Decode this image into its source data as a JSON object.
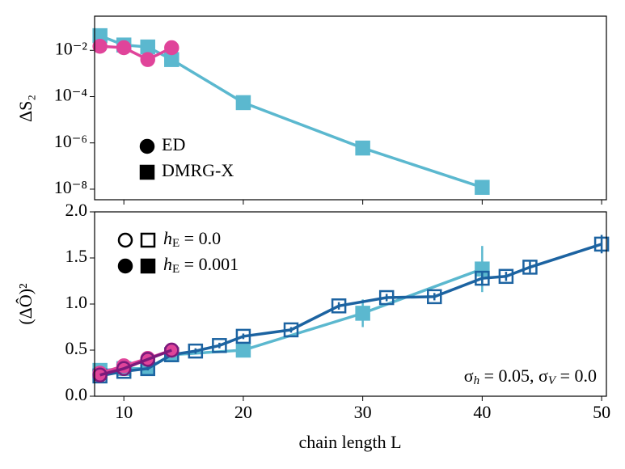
{
  "chart_data": [
    {
      "type": "line",
      "log_y": true,
      "ylabel": "ΔS₂",
      "xlim": [
        7.55,
        50.4
      ],
      "xticks": [
        10,
        20,
        30,
        40,
        50
      ],
      "ylim": [
        3.5e-09,
        0.3
      ],
      "yticks": [
        {
          "value": 0.01,
          "label": "10⁻²"
        },
        {
          "value": 0.0001,
          "label": "10⁻⁴"
        },
        {
          "value": 1e-06,
          "label": "10⁻⁶"
        },
        {
          "value": 1e-08,
          "label": "10⁻⁸"
        }
      ],
      "series": [
        {
          "name": "DMRG-X",
          "color": "#5bb8cf",
          "marker": "s",
          "filled": true,
          "x": [
            8,
            10,
            12,
            14,
            20,
            30,
            40
          ],
          "values": [
            0.043,
            0.017,
            0.014,
            0.004,
            5.5e-05,
            6e-07,
            1.2e-08
          ]
        },
        {
          "name": "ED",
          "color": "#e0449a",
          "marker": "o",
          "filled": true,
          "x": [
            8,
            10,
            12,
            14
          ],
          "values": [
            0.015,
            0.013,
            0.004,
            0.013
          ]
        }
      ]
    },
    {
      "type": "line",
      "xlabel": "chain length L",
      "xlim": [
        7.55,
        50.4
      ],
      "xticks": [
        10,
        20,
        30,
        40,
        50
      ],
      "ylim": [
        0,
        2
      ],
      "yticks": [
        {
          "value": 0,
          "label": "0.0"
        },
        {
          "value": 0.5,
          "label": "0.5"
        },
        {
          "value": 1,
          "label": "1.0"
        },
        {
          "value": 1.5,
          "label": "1.5"
        },
        {
          "value": 2,
          "label": "2.0"
        }
      ],
      "ylabel": "(ΔÔ)²",
      "annotation": [
        {
          "t": "σ"
        },
        {
          "sub": "h"
        },
        {
          "t": " = 0.05, σ"
        },
        {
          "sub": "V"
        },
        {
          "t": " = 0.0"
        }
      ],
      "legend": [
        {
          "h": "h",
          "sub": "E",
          "t": " = 0.0",
          "filled": false
        },
        {
          "h": "h",
          "sub": "E",
          "t": " = 0.001",
          "filled": true
        }
      ],
      "series": [
        {
          "color": "#5bb8cf",
          "marker": "s",
          "filled": true,
          "x": [
            8,
            10,
            12,
            14,
            20,
            30,
            40
          ],
          "values": [
            0.28,
            0.3,
            0.3,
            0.45,
            0.5,
            0.9,
            1.38
          ],
          "errors": [
            0.03,
            0.03,
            0.03,
            0.03,
            0.03,
            0.15,
            0.25
          ]
        },
        {
          "color": "#1c63a1",
          "marker": "s",
          "filled": false,
          "x": [
            8,
            10,
            12,
            14,
            16,
            18,
            20,
            24,
            28,
            32,
            36,
            40,
            42,
            44,
            50
          ],
          "values": [
            0.22,
            0.27,
            0.3,
            0.45,
            0.49,
            0.55,
            0.65,
            0.72,
            0.98,
            1.07,
            1.08,
            1.28,
            1.3,
            1.4,
            1.65
          ],
          "errors": [
            0.02,
            0.02,
            0.02,
            0.03,
            0.03,
            0.03,
            0.03,
            0.03,
            0.04,
            0.04,
            0.04,
            0.08,
            0.05,
            0.06,
            0.1
          ]
        },
        {
          "color": "#e0449a",
          "marker": "o",
          "filled": true,
          "x": [
            8,
            10,
            12,
            14
          ],
          "values": [
            0.25,
            0.33,
            0.41,
            0.5
          ]
        },
        {
          "color": "#7b1a7b",
          "marker": "o",
          "filled": false,
          "x": [
            8,
            10,
            12,
            14
          ],
          "values": [
            0.23,
            0.3,
            0.4,
            0.5
          ]
        }
      ]
    }
  ]
}
